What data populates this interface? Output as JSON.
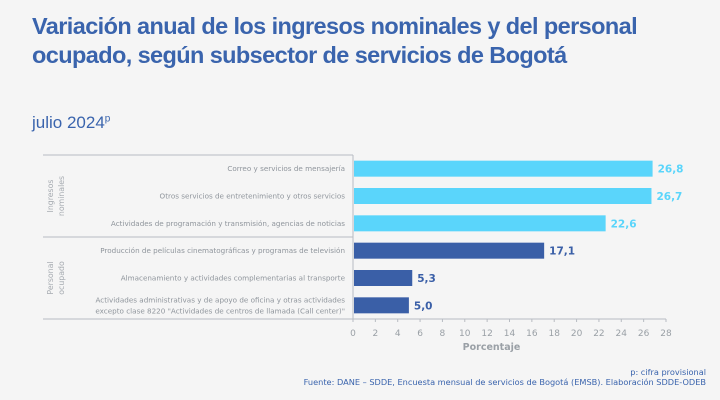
{
  "header": {
    "title": "Variación anual de los ingresos nominales y del personal ocupado, según subsector de servicios de Bogotá",
    "subtitle": "julio 2024",
    "subtitle_sup": "p"
  },
  "footer": {
    "note": "p: cifra provisional",
    "source": "Fuente: DANE – SDDE, Encuesta mensual de servicios de Bogotá (EMSB). Elaboración SDDE-ODEB"
  },
  "colors": {
    "ingresos": "#5ad5fb",
    "personal": "#3a5fa7",
    "title": "#3a64ad"
  },
  "chart_data": {
    "type": "bar",
    "orientation": "horizontal",
    "title": "Variación anual de los ingresos nominales y del personal ocupado, según subsector de servicios de Bogotá",
    "subtitle": "julio 2024p",
    "xlabel": "Porcentaje",
    "ylabel": "",
    "xlim": [
      0,
      28
    ],
    "xticks": [
      "0",
      "2",
      "4",
      "6",
      "8",
      "10",
      "12",
      "14",
      "16",
      "18",
      "20",
      "22",
      "24",
      "26",
      "28"
    ],
    "grid": false,
    "groups": [
      {
        "name": "Ingresos nominales",
        "name_lines": [
          "Ingresos",
          "nominales"
        ],
        "color": "#5ad5fb",
        "items": [
          {
            "category": [
              "Correo y servicios de mensajería"
            ],
            "value": 26.8,
            "label": "26,8"
          },
          {
            "category": [
              "Otros servicios de entretenimiento y otros servicios"
            ],
            "value": 26.7,
            "label": "26,7"
          },
          {
            "category": [
              "Actividades de programación y transmisión, agencias de noticias"
            ],
            "value": 22.6,
            "label": "22,6"
          }
        ]
      },
      {
        "name": "Personal ocupado",
        "name_lines": [
          "Personal",
          "ocupado"
        ],
        "color": "#3a5fa7",
        "items": [
          {
            "category": [
              "Producción de películas cinematográficas y programas de televisión"
            ],
            "value": 17.1,
            "label": "17,1"
          },
          {
            "category": [
              "Almacenamiento y actividades complementarias al transporte"
            ],
            "value": 5.3,
            "label": "5,3"
          },
          {
            "category": [
              "Actividades administrativas y de apoyo de oficina y otras actividades",
              "excepto clase 8220 \"Actividades de centros de llamada (Call center)\""
            ],
            "value": 5.0,
            "label": "5,0"
          }
        ]
      }
    ]
  }
}
